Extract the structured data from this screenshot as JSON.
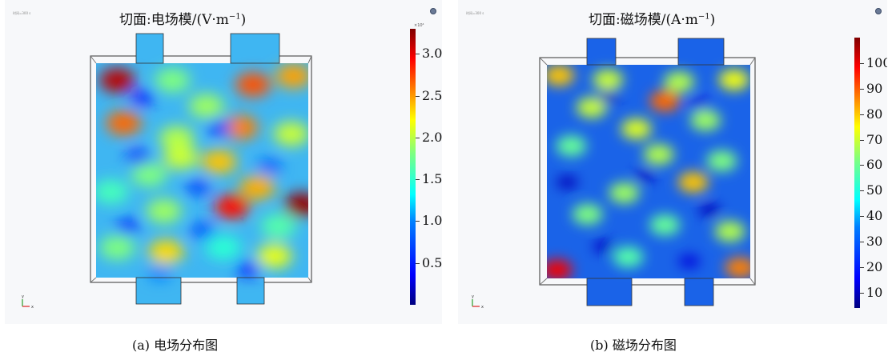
{
  "chart_data": [
    {
      "type": "heatmap",
      "title": "切面:电场模/(V·m",
      "title_sup": "−1",
      "title_close": ")",
      "time_label": "时间=300 s",
      "colorbar": {
        "exponent_label": "×10⁴",
        "ticks": [
          "3.0",
          "2.5",
          "2.0",
          "1.5",
          "1.0",
          "0.5"
        ],
        "tick_values": [
          3.0,
          2.5,
          2.0,
          1.5,
          1.0,
          0.5
        ],
        "range": [
          0,
          3.3
        ],
        "colormap": "jet"
      },
      "caption": "(a) 电场分布图",
      "hotspots": [
        {
          "x": 0.1,
          "y": 0.08,
          "v": 0.95
        },
        {
          "x": 0.36,
          "y": 0.08,
          "v": 0.55
        },
        {
          "x": 0.74,
          "y": 0.1,
          "v": 0.82
        },
        {
          "x": 0.93,
          "y": 0.06,
          "v": 0.75
        },
        {
          "x": 0.52,
          "y": 0.2,
          "v": 0.58
        },
        {
          "x": 0.13,
          "y": 0.28,
          "v": 0.8
        },
        {
          "x": 0.38,
          "y": 0.35,
          "v": 0.6
        },
        {
          "x": 0.68,
          "y": 0.3,
          "v": 0.78
        },
        {
          "x": 0.92,
          "y": 0.33,
          "v": 0.62
        },
        {
          "x": 0.4,
          "y": 0.44,
          "v": 0.62
        },
        {
          "x": 0.58,
          "y": 0.46,
          "v": 0.72
        },
        {
          "x": 0.25,
          "y": 0.52,
          "v": 0.55
        },
        {
          "x": 0.07,
          "y": 0.6,
          "v": 0.48
        },
        {
          "x": 0.76,
          "y": 0.58,
          "v": 0.74
        },
        {
          "x": 0.97,
          "y": 0.66,
          "v": 0.98
        },
        {
          "x": 0.64,
          "y": 0.67,
          "v": 0.88
        },
        {
          "x": 0.32,
          "y": 0.69,
          "v": 0.58
        },
        {
          "x": 0.86,
          "y": 0.76,
          "v": 0.5
        },
        {
          "x": 0.1,
          "y": 0.86,
          "v": 0.55
        },
        {
          "x": 0.33,
          "y": 0.88,
          "v": 0.7
        },
        {
          "x": 0.6,
          "y": 0.86,
          "v": 0.45
        },
        {
          "x": 0.84,
          "y": 0.9,
          "v": 0.65
        }
      ]
    },
    {
      "type": "heatmap",
      "title": "切面:磁场模/(A·m",
      "title_sup": "−1",
      "title_close": ")",
      "time_label": "时间=300 s",
      "colorbar": {
        "ticks": [
          "100",
          "90",
          "80",
          "70",
          "60",
          "50",
          "40",
          "30",
          "20",
          "10"
        ],
        "tick_values": [
          100,
          90,
          80,
          70,
          60,
          50,
          40,
          30,
          20,
          10
        ],
        "range": [
          4,
          110
        ],
        "colormap": "jet"
      },
      "caption": "(b) 磁场分布图",
      "hotspots": [
        {
          "x": 0.06,
          "y": 0.05,
          "v": 0.72
        },
        {
          "x": 0.3,
          "y": 0.07,
          "v": 0.62
        },
        {
          "x": 0.65,
          "y": 0.08,
          "v": 0.6
        },
        {
          "x": 0.92,
          "y": 0.07,
          "v": 0.66
        },
        {
          "x": 0.58,
          "y": 0.17,
          "v": 0.8
        },
        {
          "x": 0.22,
          "y": 0.2,
          "v": 0.62
        },
        {
          "x": 0.44,
          "y": 0.3,
          "v": 0.64
        },
        {
          "x": 0.78,
          "y": 0.26,
          "v": 0.58
        },
        {
          "x": 0.12,
          "y": 0.38,
          "v": 0.52
        },
        {
          "x": 0.55,
          "y": 0.42,
          "v": 0.6
        },
        {
          "x": 0.86,
          "y": 0.45,
          "v": 0.55
        },
        {
          "x": 0.38,
          "y": 0.6,
          "v": 0.58
        },
        {
          "x": 0.72,
          "y": 0.55,
          "v": 0.72
        },
        {
          "x": 0.2,
          "y": 0.7,
          "v": 0.55
        },
        {
          "x": 0.58,
          "y": 0.75,
          "v": 0.52
        },
        {
          "x": 0.9,
          "y": 0.78,
          "v": 0.6
        },
        {
          "x": 0.05,
          "y": 0.96,
          "v": 0.9
        },
        {
          "x": 0.95,
          "y": 0.95,
          "v": 0.78
        },
        {
          "x": 0.4,
          "y": 0.9,
          "v": 0.5
        }
      ]
    }
  ]
}
